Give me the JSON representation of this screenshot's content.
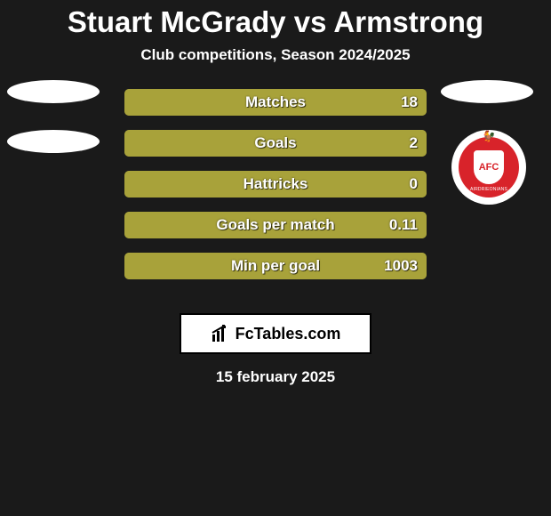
{
  "title": {
    "text": "Stuart McGrady vs Armstrong",
    "color": "#ffffff",
    "fontsize": 33
  },
  "subtitle": {
    "text": "Club competitions, Season 2024/2025",
    "color": "#ffffff",
    "fontsize": 17
  },
  "background_color": "#1a1a1a",
  "bar_style": {
    "track_border_color": "#a8a23a",
    "fill_color": "#a8a23a",
    "label_fontsize": 17,
    "value_fontsize": 17,
    "height": 30,
    "gap": 16,
    "border_radius": 6
  },
  "bars": [
    {
      "label": "Matches",
      "value_right": "18",
      "fill_pct": 100
    },
    {
      "label": "Goals",
      "value_right": "2",
      "fill_pct": 100
    },
    {
      "label": "Hattricks",
      "value_right": "0",
      "fill_pct": 100
    },
    {
      "label": "Goals per match",
      "value_right": "0.11",
      "fill_pct": 100
    },
    {
      "label": "Min per goal",
      "value_right": "1003",
      "fill_pct": 100
    }
  ],
  "left_player_badges": {
    "ellipse_color": "#ffffff",
    "count": 2
  },
  "right_player_badges": {
    "ellipse_color": "#ffffff",
    "afc": {
      "outer_bg": "#ffffff",
      "inner_bg": "#d8232a",
      "shield_bg": "#ffffff",
      "shield_text": "AFC",
      "banner_text": "AIRDRIEONIANS"
    }
  },
  "logo": {
    "text": "FcTables.com",
    "box_bg": "#ffffff",
    "box_border": "#000000",
    "fontsize": 18,
    "icon_color": "#000000"
  },
  "date": {
    "text": "15 february 2025",
    "fontsize": 17,
    "color": "#ffffff"
  }
}
